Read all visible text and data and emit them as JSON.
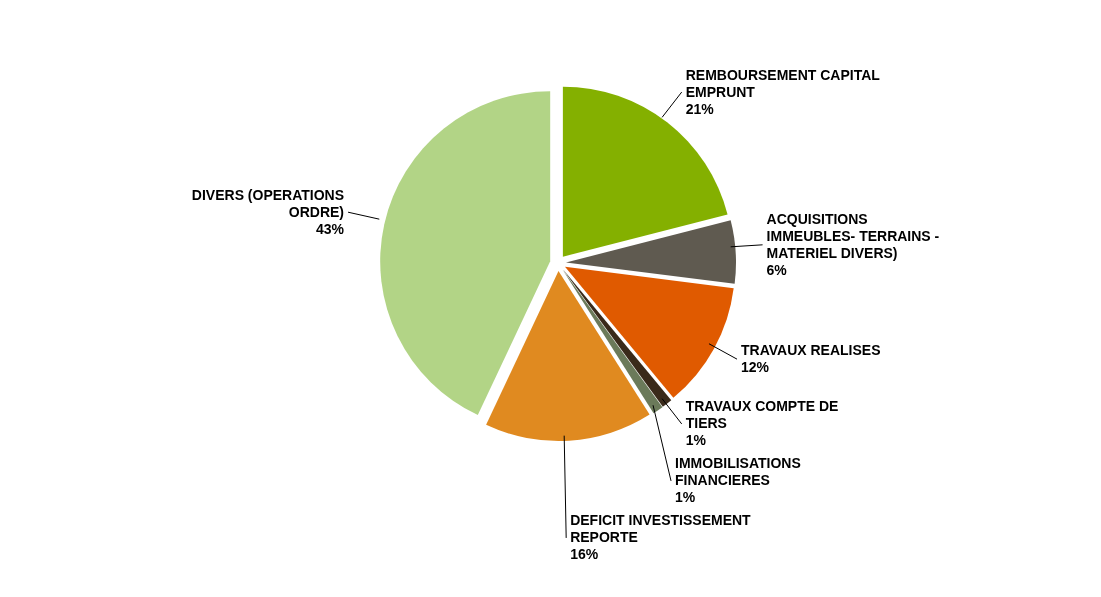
{
  "chart_data": {
    "type": "pie",
    "categories": [
      "REMBOURSEMENT CAPITAL EMPRUNT",
      "ACQUISITIONS IMMEUBLES- TERRAINS - MATERIEL DIVERS)",
      "TRAVAUX REALISES",
      "TRAVAUX COMPTE DE TIERS",
      "IMMOBILISATIONS FINANCIERES",
      "DEFICIT INVESTISSEMENT REPORTE",
      "DIVERS (OPERATIONS ORDRE)"
    ],
    "values": [
      21,
      6,
      12,
      1,
      1,
      16,
      43
    ],
    "value_labels": [
      "21%",
      "6%",
      "12%",
      "1%",
      "1%",
      "16%",
      "43%"
    ],
    "colors": [
      "#84b000",
      "#5f5a50",
      "#e05a00",
      "#3a2a1a",
      "#6b7a5a",
      "#e08a20",
      "#b2d486"
    ]
  }
}
